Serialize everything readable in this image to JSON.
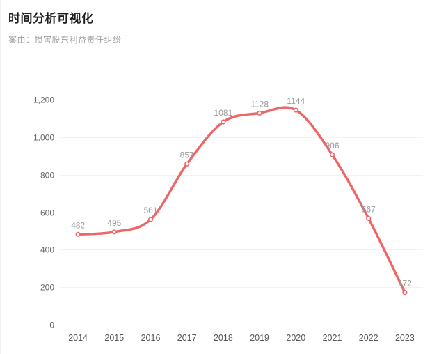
{
  "chart_data": {
    "type": "line",
    "title": "时间分析可视化",
    "subtitle": "案由：损害股东利益责任纠纷",
    "categories": [
      "2014",
      "2015",
      "2016",
      "2017",
      "2018",
      "2019",
      "2020",
      "2021",
      "2022",
      "2023"
    ],
    "values": [
      482,
      495,
      561,
      857,
      1081,
      1128,
      1144,
      906,
      567,
      172
    ],
    "data_labels": [
      "482",
      "495",
      "561",
      "857",
      "1081",
      "1128",
      "1144",
      "906",
      "567",
      "172"
    ],
    "ylim": [
      0,
      1200
    ],
    "ytick_interval": 200,
    "ytick_labels": [
      "0",
      "200",
      "400",
      "600",
      "800",
      "1,000",
      "1,200"
    ],
    "grid": "horizontal-only",
    "legend": "none",
    "smooth": true,
    "line_color": "#ee6666",
    "marker_fill": "#ffffff",
    "data_label_color": "#999999",
    "y_axis_label_color": "#666666",
    "x_axis_label_color": "#555555",
    "grid_color": "#f2f2f2",
    "axis_line_color": "#e4e4e4",
    "title_color": "#1f1f1f",
    "subtitle_color": "#9e9e9e"
  }
}
